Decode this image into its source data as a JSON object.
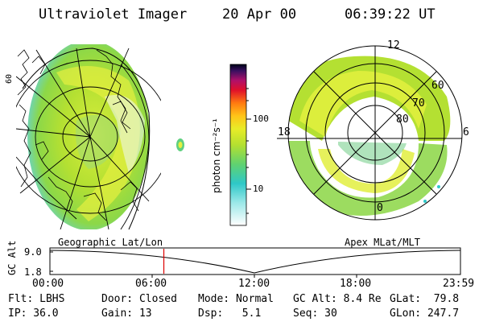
{
  "header": {
    "instrument": "Ultraviolet Imager",
    "date": "20 Apr 00",
    "time": "06:39:22 UT"
  },
  "colorbar": {
    "label": "photon cm⁻²s⁻¹",
    "ticks": [
      {
        "label": "100",
        "value": 100
      },
      {
        "label": "10",
        "value": 10
      }
    ]
  },
  "geo_panel": {
    "label": "Geographic Lat/Lon",
    "glyph": "60"
  },
  "polar_panel": {
    "label": "Apex MLat/MLT",
    "lat_labels": [
      "60",
      "70",
      "80"
    ],
    "mlt_labels": {
      "top": "12",
      "left": "18",
      "right": "6",
      "bottom": "0"
    }
  },
  "altitude_plot": {
    "ylabel": "GC Alt",
    "yticks": [
      "9.0",
      "1.8"
    ],
    "xticks": [
      "00:00",
      "06:00",
      "12:00",
      "18:00",
      "23:59"
    ],
    "current_time_hours": 6.66,
    "marker_color": "#dd0000"
  },
  "params": {
    "flt": "Flt: LBHS",
    "ip": "IP: 36.0",
    "door": "Door: Closed",
    "gain": "Gain: 13",
    "mode": "Mode: Normal",
    "dsp": "Dsp:   5.1",
    "gcalt": "GC Alt: 8.4 Re",
    "seq": "Seq: 30",
    "glat": "GLat:  79.8",
    "glon": "GLon: 247.7"
  }
}
